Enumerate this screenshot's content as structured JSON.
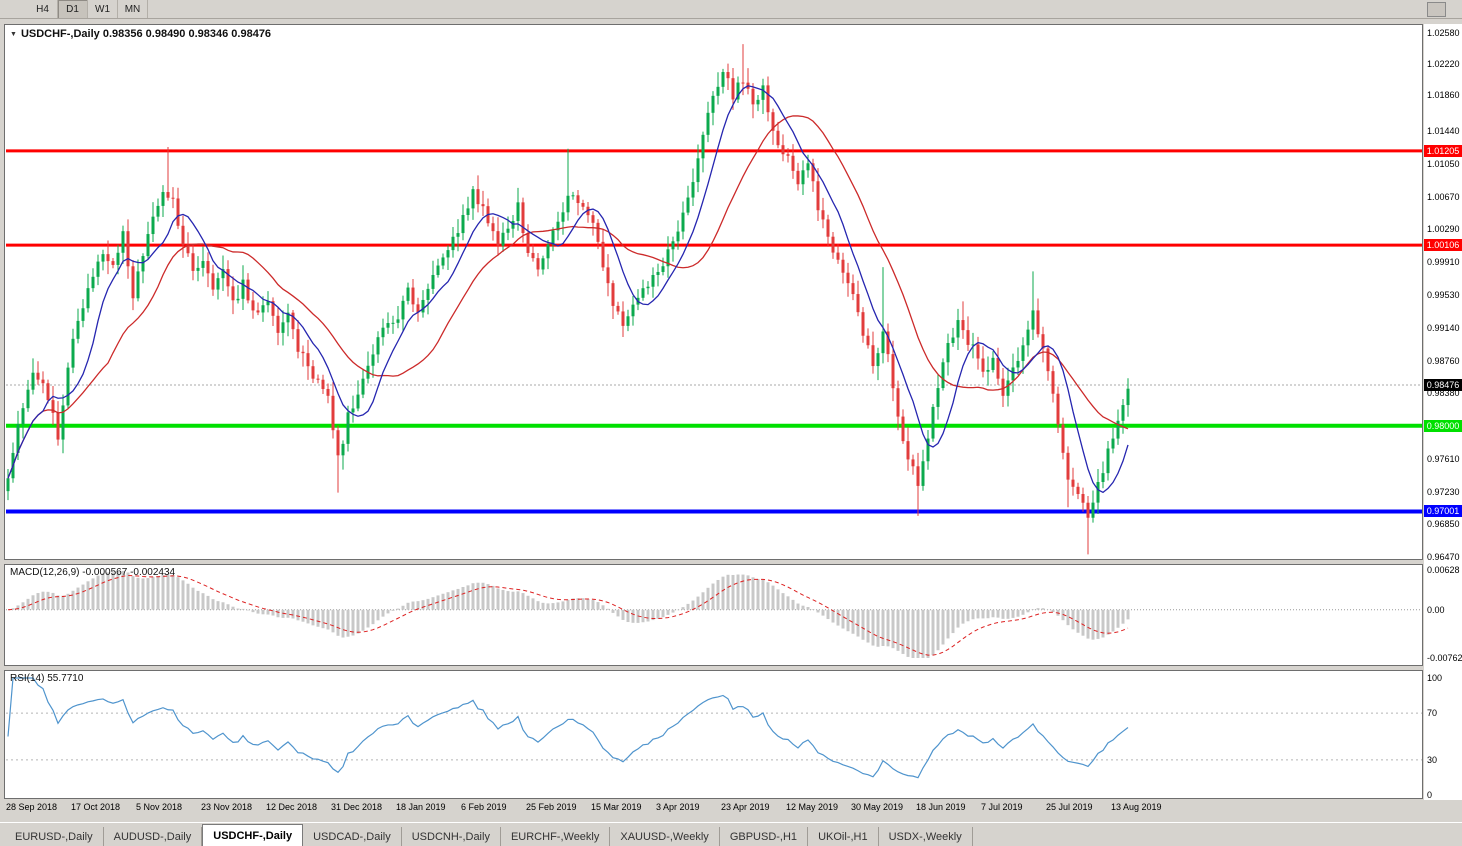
{
  "colors": {
    "window_bg": "#d6d3ce",
    "panel_bg": "#ffffff",
    "up": "#0caa4e",
    "down": "#e23c3c",
    "ma_fast": "#2626b0",
    "ma_slow": "#cc2a2a",
    "macd_hist": "#c8c8c8",
    "macd_signal": "#dd2222",
    "rsi_line": "#4f94cd",
    "grid_dotted": "#aaaaaa"
  },
  "toolbar": {
    "timeframes": [
      {
        "label": "H4",
        "active": false
      },
      {
        "label": "D1",
        "active": true
      },
      {
        "label": "W1",
        "active": false
      },
      {
        "label": "MN",
        "active": false
      }
    ]
  },
  "chart_header": {
    "symbol": "USDCHF-,Daily",
    "open": "0.98356",
    "high": "0.98490",
    "low": "0.98346",
    "close": "0.98476"
  },
  "price_axis": {
    "max": 1.0258,
    "min": 0.9647,
    "labels": [
      "1.02580",
      "1.02220",
      "1.01860",
      "1.01440",
      "1.01050",
      "1.00670",
      "1.00290",
      "0.99910",
      "0.99530",
      "0.99140",
      "0.98760",
      "0.98380",
      "0.97610",
      "0.97230",
      "0.96850",
      "0.96470"
    ]
  },
  "hlines": [
    {
      "name": "resistance-upper",
      "value": 1.01205,
      "label": "1.01205",
      "color": "#ff0000",
      "text_color": "#ffffff",
      "width": 3
    },
    {
      "name": "resistance-lower",
      "value": 1.00106,
      "label": "1.00106",
      "color": "#ff0000",
      "text_color": "#ffffff",
      "width": 3
    },
    {
      "name": "support-green",
      "value": 0.98,
      "label": "0.98000",
      "color": "#00e000",
      "text_color": "#ffffff",
      "width": 4
    },
    {
      "name": "support-blue",
      "value": 0.97001,
      "label": "0.97001",
      "color": "#0000ff",
      "text_color": "#ffffff",
      "width": 4
    }
  ],
  "current_price": {
    "value": 0.98476,
    "label": "0.98476",
    "bg": "#000000",
    "text_color": "#ffffff"
  },
  "macd": {
    "label": "MACD(12,26,9) -0.000567 -0.002434",
    "max": 0.00628,
    "min": -0.00762,
    "axis": [
      "0.00628",
      "0.00",
      "-0.00762"
    ]
  },
  "rsi": {
    "label": "RSI(14) 55.7710",
    "value": "55.7710",
    "axis": [
      "100",
      "70",
      "30",
      "0"
    ],
    "levels": [
      70,
      30
    ]
  },
  "date_axis": [
    "28 Sep 2018",
    "17 Oct 2018",
    "5 Nov 2018",
    "23 Nov 2018",
    "12 Dec 2018",
    "31 Dec 2018",
    "18 Jan 2019",
    "6 Feb 2019",
    "25 Feb 2019",
    "15 Mar 2019",
    "3 Apr 2019",
    "23 Apr 2019",
    "12 May 2019",
    "30 May 2019",
    "18 Jun 2019",
    "7 Jul 2019",
    "25 Jul 2019",
    "13 Aug 2019"
  ],
  "tabs": [
    {
      "label": "EURUSD-,Daily",
      "active": false
    },
    {
      "label": "AUDUSD-,Daily",
      "active": false
    },
    {
      "label": "USDCHF-,Daily",
      "active": true
    },
    {
      "label": "USDCAD-,Daily",
      "active": false
    },
    {
      "label": "USDCNH-,Daily",
      "active": false
    },
    {
      "label": "EURCHF-,Weekly",
      "active": false
    },
    {
      "label": "XAUUSD-,Weekly",
      "active": false
    },
    {
      "label": "GBPUSD-,H1",
      "active": false
    },
    {
      "label": "UKOil-,H1",
      "active": false
    },
    {
      "label": "USDX-,Weekly",
      "active": false
    }
  ],
  "chart_data": {
    "type": "candlestick",
    "symbol": "USDCHF",
    "timeframe": "Daily",
    "bars": 225,
    "bar_spacing_px": 5,
    "ma_fast_period": 8,
    "ma_slow_period": 21,
    "macd_params": [
      12,
      26,
      9
    ],
    "rsi_period": 14,
    "anchors": [
      [
        0,
        0.9745
      ],
      [
        2,
        0.98
      ],
      [
        5,
        0.986
      ],
      [
        8,
        0.9835
      ],
      [
        10,
        0.979
      ],
      [
        13,
        0.99
      ],
      [
        16,
        0.996
      ],
      [
        19,
        1.0005
      ],
      [
        21,
        0.9985
      ],
      [
        23,
        1.003
      ],
      [
        25,
        0.995
      ],
      [
        26,
        0.9985
      ],
      [
        29,
        1.004
      ],
      [
        31,
        1.0075
      ],
      [
        33,
        1.006
      ],
      [
        35,
        1.001
      ],
      [
        37,
        0.9985
      ],
      [
        39,
        0.9995
      ],
      [
        41,
        0.996
      ],
      [
        43,
        0.998
      ],
      [
        45,
        0.994
      ],
      [
        47,
        0.9965
      ],
      [
        49,
        0.993
      ],
      [
        52,
        0.9945
      ],
      [
        54,
        0.991
      ],
      [
        56,
        0.9935
      ],
      [
        58,
        0.989
      ],
      [
        61,
        0.9855
      ],
      [
        64,
        0.984
      ],
      [
        66,
        0.976
      ],
      [
        68,
        0.981
      ],
      [
        70,
        0.9835
      ],
      [
        72,
        0.987
      ],
      [
        75,
        0.9915
      ],
      [
        78,
        0.993
      ],
      [
        80,
        0.9955
      ],
      [
        82,
        0.9935
      ],
      [
        84,
        0.996
      ],
      [
        86,
        0.9985
      ],
      [
        88,
        1.001
      ],
      [
        91,
        1.004
      ],
      [
        93,
        1.007
      ],
      [
        96,
        1.004
      ],
      [
        98,
        1.001
      ],
      [
        100,
        1.0035
      ],
      [
        102,
        1.0055
      ],
      [
        104,
        1.0005
      ],
      [
        106,
        0.9985
      ],
      [
        108,
        1.001
      ],
      [
        110,
        1.004
      ],
      [
        112,
        1.007
      ],
      [
        114,
        1.006
      ],
      [
        117,
        1.0035
      ],
      [
        119,
        0.999
      ],
      [
        121,
        0.994
      ],
      [
        123,
        0.9915
      ],
      [
        125,
        0.994
      ],
      [
        127,
        0.996
      ],
      [
        130,
        0.9975
      ],
      [
        132,
        1.0
      ],
      [
        134,
        1.0025
      ],
      [
        136,
        1.006
      ],
      [
        138,
        1.011
      ],
      [
        140,
        1.0165
      ],
      [
        143,
        1.0215
      ],
      [
        145,
        1.0185
      ],
      [
        147,
        1.0205
      ],
      [
        149,
        1.0175
      ],
      [
        151,
        1.0195
      ],
      [
        153,
        1.0145
      ],
      [
        156,
        1.011
      ],
      [
        158,
        1.008
      ],
      [
        160,
        1.0105
      ],
      [
        162,
        1.0055
      ],
      [
        164,
        1.002
      ],
      [
        166,
        0.999
      ],
      [
        169,
        0.995
      ],
      [
        171,
        0.9905
      ],
      [
        173,
        0.987
      ],
      [
        175,
        0.9905
      ],
      [
        177,
        0.985
      ],
      [
        179,
        0.978
      ],
      [
        182,
        0.973
      ],
      [
        184,
        0.979
      ],
      [
        186,
        0.985
      ],
      [
        188,
        0.9895
      ],
      [
        190,
        0.992
      ],
      [
        193,
        0.989
      ],
      [
        195,
        0.986
      ],
      [
        197,
        0.988
      ],
      [
        199,
        0.9835
      ],
      [
        201,
        0.9865
      ],
      [
        203,
        0.9895
      ],
      [
        205,
        0.993
      ],
      [
        208,
        0.987
      ],
      [
        210,
        0.98
      ],
      [
        212,
        0.974
      ],
      [
        214,
        0.972
      ],
      [
        216,
        0.969
      ],
      [
        218,
        0.973
      ],
      [
        221,
        0.979
      ],
      [
        223,
        0.983
      ],
      [
        224,
        0.9848
      ]
    ],
    "spikes": [
      {
        "i": 32,
        "h": 1.0125
      },
      {
        "i": 66,
        "l": 0.9722
      },
      {
        "i": 94,
        "h": 1.0092
      },
      {
        "i": 112,
        "h": 1.0123
      },
      {
        "i": 147,
        "h": 1.0245
      },
      {
        "i": 175,
        "h": 0.9985
      },
      {
        "i": 182,
        "l": 0.9695
      },
      {
        "i": 191,
        "h": 0.9945
      },
      {
        "i": 205,
        "h": 0.998
      },
      {
        "i": 212,
        "l": 0.9705
      },
      {
        "i": 216,
        "l": 0.965
      }
    ]
  }
}
